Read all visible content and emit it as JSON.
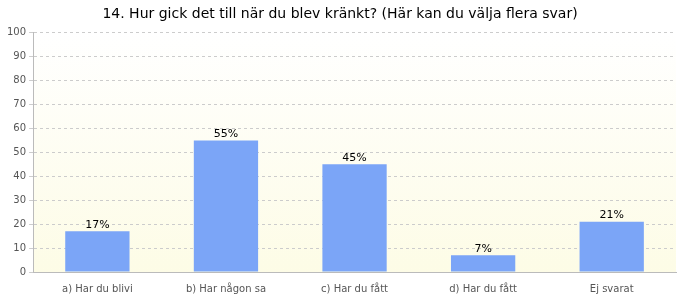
{
  "chart_data": {
    "type": "bar",
    "title": "14. Hur gick det till när du blev kränkt? (Här kan du välja flera svar)",
    "categories": [
      "a) Har du blivi",
      "b) Har någon sa",
      "c) Har du fått",
      "d) Har du fått",
      "Ej svarat"
    ],
    "values": [
      17,
      55,
      45,
      7,
      21
    ],
    "value_labels": [
      "17%",
      "55%",
      "45%",
      "7%",
      "21%"
    ],
    "data_labels": true,
    "color": "#7ba5f7",
    "ylim": [
      0,
      100
    ],
    "yticks": [
      0,
      10,
      20,
      30,
      40,
      50,
      60,
      70,
      80,
      90,
      100
    ],
    "grid": true
  }
}
